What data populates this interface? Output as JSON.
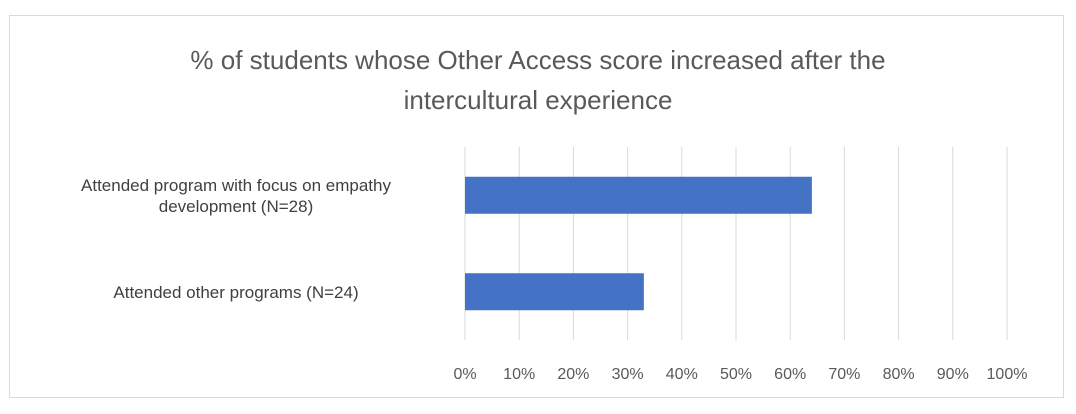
{
  "chart_data": {
    "type": "bar",
    "orientation": "horizontal",
    "title": "% of students whose Other Access score increased after the intercultural experience",
    "categories": [
      "Attended program with focus on empathy development (N=28)",
      "Attended other programs (N=24)"
    ],
    "category_lines": [
      [
        "Attended program with focus on empathy",
        "development (N=28)"
      ],
      [
        "Attended other programs (N=24)"
      ]
    ],
    "values": [
      64,
      33
    ],
    "xlim": [
      0,
      100
    ],
    "x_ticks": [
      "0%",
      "10%",
      "20%",
      "30%",
      "40%",
      "50%",
      "60%",
      "70%",
      "80%",
      "90%",
      "100%"
    ],
    "grid": true,
    "legend": "none",
    "bar_color": "#4472c4",
    "grid_color": "#d9d9d9"
  }
}
